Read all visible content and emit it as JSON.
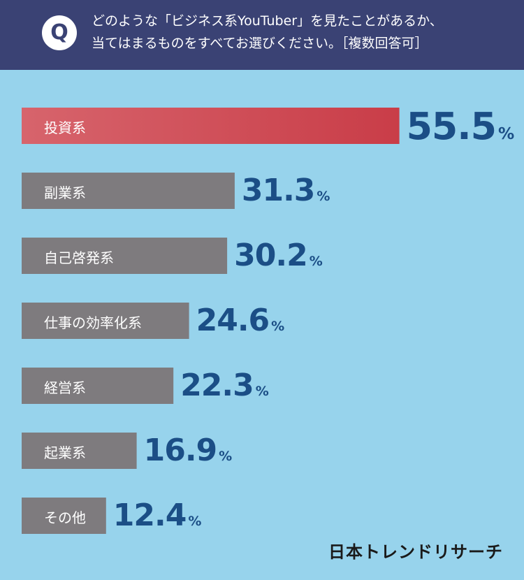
{
  "header": {
    "badge": "Q",
    "question_line1": "どのような「ビジネス系YouTuber」を見たことがあるか、",
    "question_line2": "当てはまるものをすべてお選びください。［複数回答可］"
  },
  "logo": "日本トレンドリサーチ",
  "colors": {
    "header_bg": "#3a4274",
    "page_bg": "#97d3ec",
    "highlight_bar_start": "#d7646c",
    "highlight_bar_end": "#c93d48",
    "bar": "#7e7b7e",
    "value_text": "#1b4e86"
  },
  "chart_data": {
    "type": "bar",
    "orientation": "horizontal",
    "categories": [
      "投資系",
      "副業系",
      "自己啓発系",
      "仕事の効率化系",
      "経営系",
      "起業系",
      "その他"
    ],
    "values": [
      55.5,
      31.3,
      30.2,
      24.6,
      22.3,
      16.9,
      12.4
    ],
    "value_labels": [
      "55.5",
      "31.3",
      "30.2",
      "24.6",
      "22.3",
      "16.9",
      "12.4"
    ],
    "unit": "%",
    "highlight_index": 0,
    "grid": false,
    "legend": "none"
  }
}
